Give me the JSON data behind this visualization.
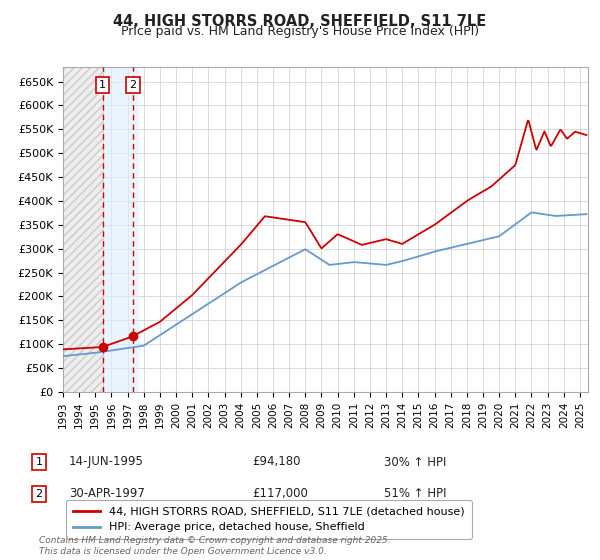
{
  "title_line1": "44, HIGH STORRS ROAD, SHEFFIELD, S11 7LE",
  "title_line2": "Price paid vs. HM Land Registry's House Price Index (HPI)",
  "ylabel_ticks": [
    "£0",
    "£50K",
    "£100K",
    "£150K",
    "£200K",
    "£250K",
    "£300K",
    "£350K",
    "£400K",
    "£450K",
    "£500K",
    "£550K",
    "£600K",
    "£650K"
  ],
  "ytick_values": [
    0,
    50000,
    100000,
    150000,
    200000,
    250000,
    300000,
    350000,
    400000,
    450000,
    500000,
    550000,
    600000,
    650000
  ],
  "ylim": [
    0,
    680000
  ],
  "xlim_start": 1993.0,
  "xlim_end": 2025.5,
  "xtick_years": [
    1993,
    1994,
    1995,
    1996,
    1997,
    1998,
    1999,
    2000,
    2001,
    2002,
    2003,
    2004,
    2005,
    2006,
    2007,
    2008,
    2009,
    2010,
    2011,
    2012,
    2013,
    2014,
    2015,
    2016,
    2017,
    2018,
    2019,
    2020,
    2021,
    2022,
    2023,
    2024,
    2025
  ],
  "purchase1_x": 1995.45,
  "purchase1_y": 94180,
  "purchase2_x": 1997.33,
  "purchase2_y": 117000,
  "purchase1_date": "14-JUN-1995",
  "purchase1_price": "£94,180",
  "purchase1_hpi": "30% ↑ HPI",
  "purchase2_date": "30-APR-1997",
  "purchase2_price": "£117,000",
  "purchase2_hpi": "51% ↑ HPI",
  "legend_line1": "44, HIGH STORRS ROAD, SHEFFIELD, S11 7LE (detached house)",
  "legend_line2": "HPI: Average price, detached house, Sheffield",
  "red_color": "#cc0000",
  "blue_color": "#6699cc",
  "background_color": "#ffffff",
  "grid_color": "#cccccc",
  "footer_text": "Contains HM Land Registry data © Crown copyright and database right 2025.\nThis data is licensed under the Open Government Licence v3.0."
}
